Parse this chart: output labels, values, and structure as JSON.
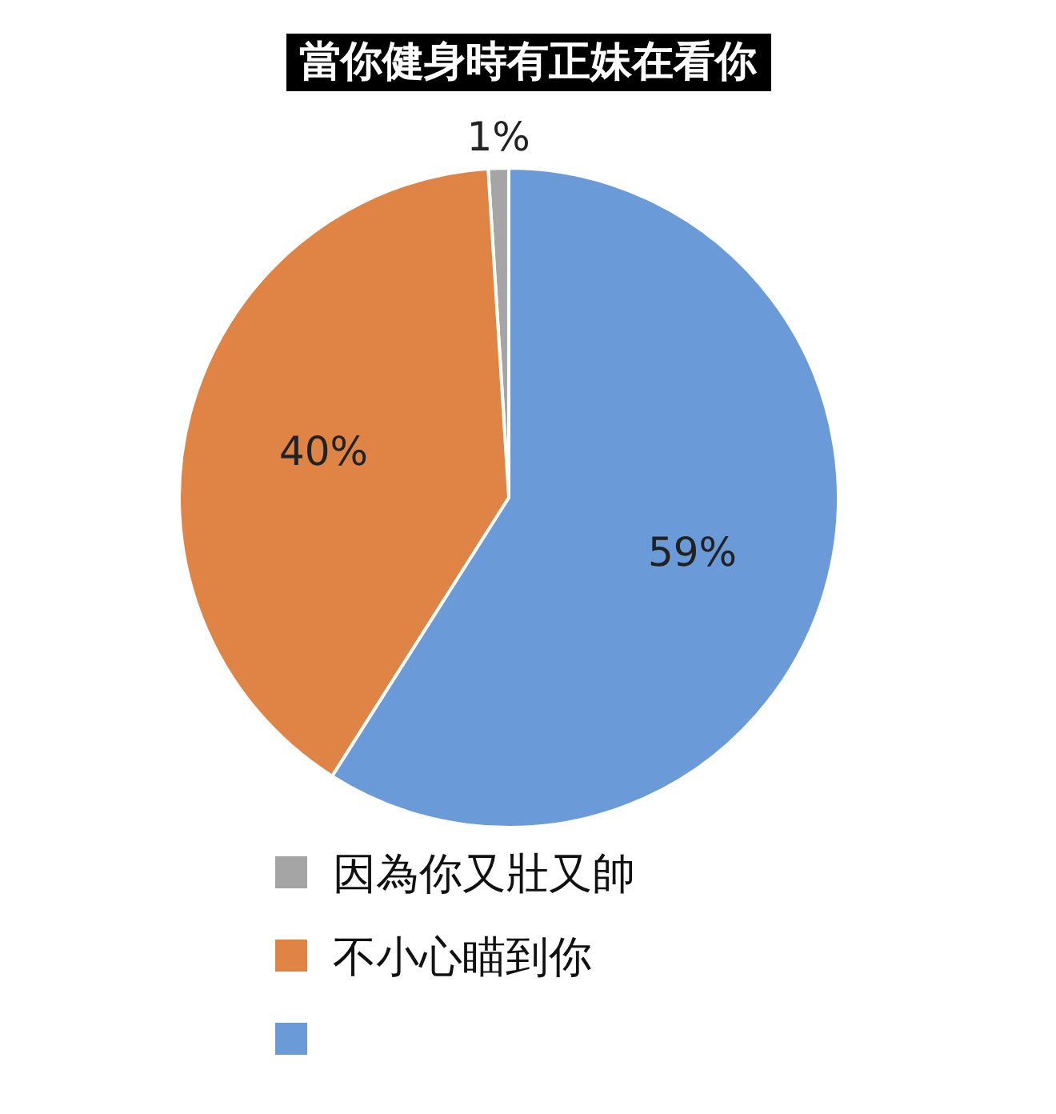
{
  "chart_data": {
    "type": "pie",
    "title": "當你健身時有正妹在看你",
    "categories": [
      "因為你又壯又帥",
      "不小心瞄到你",
      null
    ],
    "values": [
      1,
      40,
      59
    ],
    "value_labels": [
      "1%",
      "40%",
      "59%"
    ],
    "colors": [
      "#a5a5a5",
      "#df8444",
      "#6a9bd8"
    ],
    "legend": "bottom"
  }
}
